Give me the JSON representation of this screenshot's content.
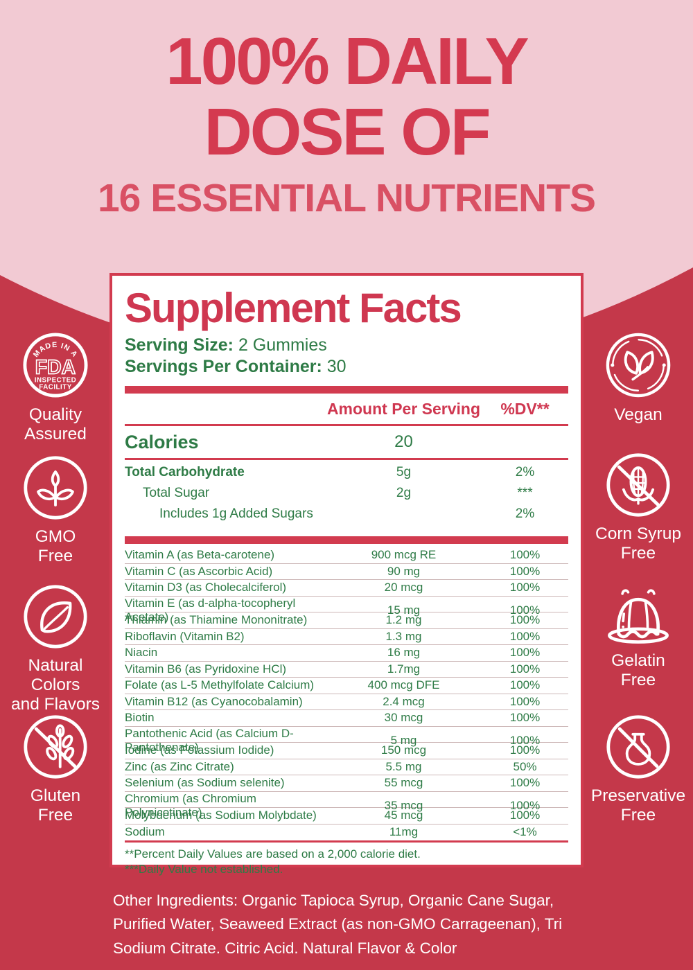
{
  "hero": {
    "title_line1": "100% DAILY",
    "title_line2": "DOSE OF",
    "subtitle": "16 ESSENTIAL NUTRIENTS"
  },
  "panel": {
    "title": "Supplement Facts",
    "serving_size_label": "Serving Size:",
    "serving_size_value": "2 Gummies",
    "servings_label": "Servings Per Container:",
    "servings_value": "30",
    "col_amount": "Amount Per Serving",
    "col_dv": "%DV**",
    "calories_label": "Calories",
    "calories_value": "20",
    "macro_rows": [
      {
        "name": "Total Carbohydrate",
        "amount": "5g",
        "dv": "2%",
        "indent": 0,
        "bold": true
      },
      {
        "name": "Total Sugar",
        "amount": "2g",
        "dv": "***",
        "indent": 1,
        "bold": false
      },
      {
        "name": "Includes 1g Added Sugars",
        "amount": "",
        "dv": "2%",
        "indent": 2,
        "bold": false
      }
    ],
    "nutrient_rows": [
      {
        "name": "Vitamin A (as Beta-carotene)",
        "amount": "900 mcg RE",
        "dv": "100%"
      },
      {
        "name": "Vitamin C (as Ascorbic Acid)",
        "amount": "90 mg",
        "dv": "100%"
      },
      {
        "name": "Vitamin D3 (as Cholecalciferol)",
        "amount": "20 mcg",
        "dv": "100%"
      },
      {
        "name": "Vitamin E (as d-alpha-tocopheryl Acetate)",
        "amount": "15 mg",
        "dv": "100%"
      },
      {
        "name": "Thiamin (as Thiamine Mononitrate)",
        "amount": "1.2 mg",
        "dv": "100%"
      },
      {
        "name": "Riboflavin (Vitamin B2)",
        "amount": "1.3 mg",
        "dv": "100%"
      },
      {
        "name": "Niacin",
        "amount": "16 mg",
        "dv": "100%"
      },
      {
        "name": "Vitamin B6 (as Pyridoxine HCl)",
        "amount": "1.7mg",
        "dv": "100%"
      },
      {
        "name": "Folate (as L-5 Methylfolate Calcium)",
        "amount": "400 mcg DFE",
        "dv": "100%"
      },
      {
        "name": "Vitamin B12 (as Cyanocobalamin)",
        "amount": "2.4 mcg",
        "dv": "100%"
      },
      {
        "name": "Biotin",
        "amount": "30 mcg",
        "dv": "100%"
      },
      {
        "name": "Pantothenic Acid (as Calcium D-Pantothenate)",
        "amount": "5 mg",
        "dv": "100%"
      },
      {
        "name": "Iodine (as Potassium Iodide)",
        "amount": "150 mcg",
        "dv": "100%"
      },
      {
        "name": "Zinc (as Zinc Citrate)",
        "amount": "5.5 mg",
        "dv": "50%"
      },
      {
        "name": "Selenium (as Sodium selenite)",
        "amount": "55 mcg",
        "dv": "100%"
      },
      {
        "name": "Chromium (as Chromium Polynicotinate)",
        "amount": "35 mcg",
        "dv": "100%"
      },
      {
        "name": "Molybdenum (as Sodium Molybdate)",
        "amount": "45 mcg",
        "dv": "100%"
      },
      {
        "name": "Sodium",
        "amount": "11mg",
        "dv": "<1%"
      }
    ],
    "footnote1": "**Percent Daily Values are based on a 2,000 calorie diet.",
    "footnote2": "***Daily Value not established.",
    "fda_badge": {
      "top": "MADE IN A",
      "mid": "FDA",
      "bottom1": "INSPECTED",
      "bottom2": "FACILITY"
    }
  },
  "badges_left": [
    {
      "label": "Quality\nAssured",
      "icon": "fda-badge-icon"
    },
    {
      "label": "GMO\nFree",
      "icon": "sprout-icon"
    },
    {
      "label": "Natural\nColors\nand Flavors",
      "icon": "leaf-icon"
    },
    {
      "label": "Gluten\nFree",
      "icon": "wheat-slash-icon"
    }
  ],
  "badges_right": [
    {
      "label": "Vegan",
      "icon": "vegan-leaves-icon"
    },
    {
      "label": "Corn Syrup\nFree",
      "icon": "corn-slash-icon"
    },
    {
      "label": "Gelatin\nFree",
      "icon": "jelly-icon"
    },
    {
      "label": "Preservative\nFree",
      "icon": "flask-slash-icon"
    }
  ],
  "other_ingredients": "Other Ingredients: Organic Tapioca Syrup, Organic Cane Sugar, Purified Water, Seaweed Extract (as non-GMO Carrageenan), Tri Sodium Citrate. Citric Acid. Natural Flavor & Color",
  "colors": {
    "body_red": "#c4384a",
    "pink": "#f2cad3",
    "accent_red": "#d23b4f",
    "hero_red": "#d43a50",
    "green": "#2e7b46",
    "white": "#ffffff"
  }
}
